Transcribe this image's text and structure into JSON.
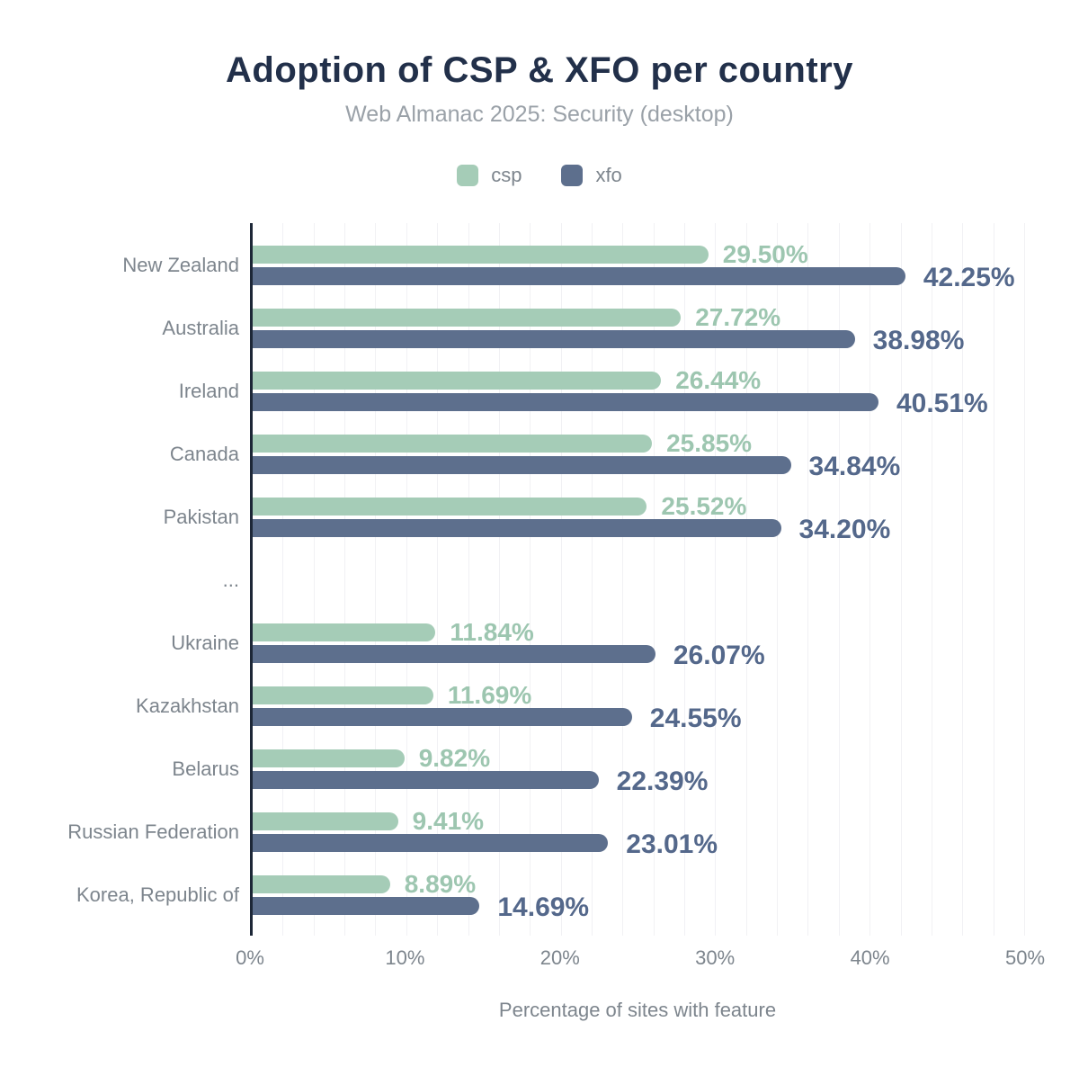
{
  "header": {
    "title": "Adoption of CSP & XFO per country",
    "subtitle": "Web Almanac 2025: Security (desktop)"
  },
  "legend": [
    {
      "name": "csp",
      "color": "#a5ccb7"
    },
    {
      "name": "xfo",
      "color": "#5d6f8d"
    }
  ],
  "colors": {
    "title": "#22304a",
    "subtitle": "#9aa1a8",
    "axis_line": "#1d2737",
    "gridline": "#f1f1f4",
    "tick_label": "#7d858d",
    "csp_bar": "#a5ccb7",
    "csp_value_label": "#9dc6b0",
    "xfo_bar": "#5d6f8d",
    "xfo_value_label": "#54688b"
  },
  "chart_data": {
    "type": "bar",
    "orientation": "horizontal",
    "title": "Adoption of CSP & XFO per country",
    "subtitle": "Web Almanac 2025: Security (desktop)",
    "xlabel": "Percentage of sites with feature",
    "ylabel": "",
    "xlim": [
      0,
      50
    ],
    "xticks": [
      "0%",
      "10%",
      "20%",
      "30%",
      "40%",
      "50%"
    ],
    "grid": "vertical",
    "grid_step_percent": 2,
    "legend_position": "top",
    "categories": [
      "New Zealand",
      "Australia",
      "Ireland",
      "Canada",
      "Pakistan",
      "...",
      "Ukraine",
      "Kazakhstan",
      "Belarus",
      "Russian Federation",
      "Korea, Republic of"
    ],
    "series": [
      {
        "name": "csp",
        "color": "#a5ccb7",
        "values": [
          29.5,
          27.72,
          26.44,
          25.85,
          25.52,
          null,
          11.84,
          11.69,
          9.82,
          9.41,
          8.89
        ],
        "labels": [
          "29.50%",
          "27.72%",
          "26.44%",
          "25.85%",
          "25.52%",
          null,
          "11.84%",
          "11.69%",
          "9.82%",
          "9.41%",
          "8.89%"
        ]
      },
      {
        "name": "xfo",
        "color": "#5d6f8d",
        "values": [
          42.25,
          38.98,
          40.51,
          34.84,
          34.2,
          null,
          26.07,
          24.55,
          22.39,
          23.01,
          14.69
        ],
        "labels": [
          "42.25%",
          "38.98%",
          "40.51%",
          "34.84%",
          "34.20%",
          null,
          "26.07%",
          "24.55%",
          "22.39%",
          "23.01%",
          "14.69%"
        ]
      }
    ]
  }
}
